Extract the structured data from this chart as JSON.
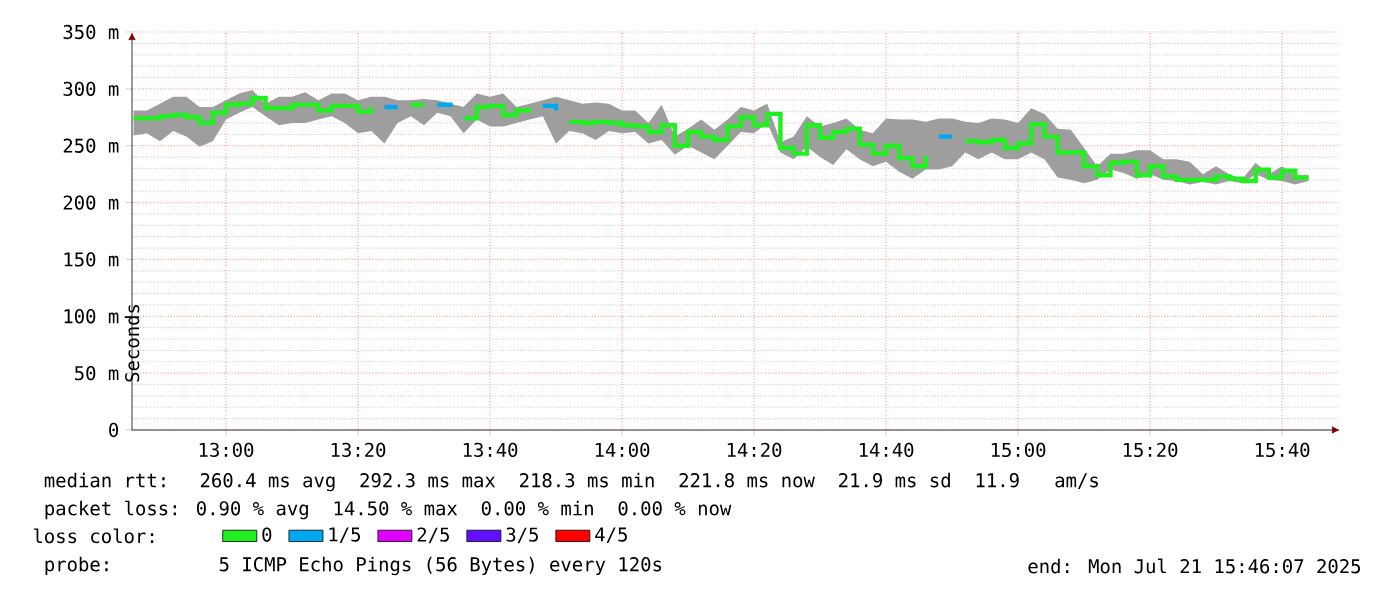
{
  "chart_data": {
    "type": "step",
    "ylabel": "Seconds",
    "legend_title": "loss color:",
    "annotations": [
      "median rtt:  260.4 ms avg  292.3 ms max  218.3 ms min  221.8 ms now  21.9 ms sd  11.9   am/s",
      "packet loss: 0.90 % avg  14.50 % max  0.00 % min  0.00 % now",
      "probe:       5 ICMP Echo Pings (56 Bytes) every 120s",
      "end: Mon Jul 21 15:46:07 2025"
    ],
    "x": [
      12.7667,
      12.8,
      12.8333,
      12.8667,
      12.9,
      12.9333,
      12.9667,
      13,
      13.0333,
      13.0667,
      13.1,
      13.1333,
      13.1667,
      13.2,
      13.2333,
      13.2667,
      13.3,
      13.3333,
      13.3667,
      13.4,
      13.4333,
      13.4667,
      13.5,
      13.5333,
      13.5667,
      13.6,
      13.6333,
      13.6667,
      13.7,
      13.7333,
      13.7667,
      13.8,
      13.8333,
      13.8667,
      13.9,
      13.9333,
      13.9667,
      14,
      14.0333,
      14.0667,
      14.1,
      14.1333,
      14.1667,
      14.2,
      14.2333,
      14.2667,
      14.3,
      14.3333,
      14.3667,
      14.4,
      14.4333,
      14.4667,
      14.5,
      14.5333,
      14.5667,
      14.6,
      14.6333,
      14.6667,
      14.7,
      14.7333,
      14.7667,
      14.8,
      14.8333,
      14.8667,
      14.9,
      14.9333,
      14.9667,
      15,
      15.0333,
      15.0667,
      15.1,
      15.1333,
      15.1667,
      15.2,
      15.2333,
      15.2667,
      15.3,
      15.3333,
      15.3667,
      15.4,
      15.4333,
      15.4667,
      15.5,
      15.5333,
      15.5667,
      15.6,
      15.6333,
      15.6667,
      15.7,
      15.7333
    ],
    "series": [
      {
        "name": "0",
        "color": "#20f020",
        "values": [
          274,
          274,
          276,
          277,
          275,
          270,
          279,
          286,
          287,
          292,
          283,
          283,
          286,
          286,
          281,
          285,
          285,
          280,
          284,
          null,
          null,
          286,
          286,
          null,
          null,
          274,
          284,
          285,
          277,
          281,
          280,
          null,
          null,
          271,
          270,
          271,
          270,
          268,
          267,
          262,
          268,
          250,
          262,
          258,
          255,
          267,
          275,
          268,
          278,
          248,
          243,
          268,
          257,
          262,
          265,
          251,
          243,
          250,
          239,
          232,
          241,
          null,
          null,
          254,
          253,
          255,
          248,
          252,
          269,
          258,
          244,
          244,
          232,
          224,
          235,
          236,
          224,
          232,
          223,
          220,
          220,
          220,
          223,
          221,
          219,
          229,
          222,
          228,
          222,
          222
        ],
        "lower": [
          259,
          261,
          254,
          263,
          258,
          249,
          254,
          273,
          279,
          284,
          276,
          268,
          270,
          270,
          273,
          276,
          270,
          261,
          263,
          252,
          270,
          276,
          268,
          279,
          276,
          261,
          273,
          267,
          267,
          270,
          273,
          276,
          252,
          263,
          261,
          255,
          263,
          261,
          262,
          252,
          255,
          242,
          250,
          244,
          238,
          250,
          262,
          261,
          270,
          244,
          238,
          249,
          240,
          233,
          247,
          238,
          232,
          236,
          227,
          221,
          229,
          229,
          232,
          244,
          238,
          244,
          238,
          238,
          244,
          238,
          222,
          220,
          217,
          220,
          229,
          226,
          221,
          225,
          220,
          219,
          216,
          218,
          216,
          219,
          217,
          225,
          220,
          219,
          216,
          219
        ],
        "upper": [
          281,
          281,
          287,
          293,
          293,
          284,
          284,
          290,
          296,
          299,
          287,
          293,
          293,
          297,
          290,
          296,
          296,
          290,
          293,
          293,
          290,
          290,
          291,
          290,
          287,
          284,
          296,
          293,
          296,
          284,
          287,
          290,
          293,
          290,
          287,
          288,
          287,
          281,
          281,
          270,
          286,
          258,
          265,
          273,
          264,
          273,
          284,
          281,
          287,
          253,
          258,
          276,
          267,
          270,
          274,
          264,
          261,
          274,
          273,
          273,
          271,
          274,
          274,
          271,
          270,
          274,
          273,
          270,
          283,
          278,
          265,
          264,
          248,
          232,
          243,
          243,
          246,
          246,
          238,
          238,
          236,
          225,
          232,
          225,
          221,
          235,
          225,
          232,
          224,
          224
        ]
      },
      {
        "name": "1/5",
        "color": "#00a8f0",
        "values": [
          null,
          null,
          null,
          null,
          null,
          null,
          null,
          null,
          null,
          null,
          null,
          null,
          null,
          null,
          null,
          null,
          null,
          null,
          null,
          284,
          284,
          null,
          null,
          286,
          284,
          null,
          null,
          null,
          null,
          null,
          null,
          285,
          281,
          null,
          null,
          null,
          null,
          null,
          null,
          null,
          null,
          null,
          null,
          null,
          null,
          null,
          null,
          null,
          null,
          null,
          null,
          null,
          null,
          null,
          null,
          null,
          null,
          null,
          null,
          null,
          null,
          258,
          258,
          null,
          null,
          null,
          null,
          null,
          null,
          null,
          null,
          null,
          null,
          null,
          null,
          null,
          null,
          null,
          null,
          null,
          null,
          null,
          null,
          null,
          null,
          null,
          null,
          null,
          null,
          null
        ]
      },
      {
        "name": "2/5",
        "color": "#e000ff",
        "values": [
          null,
          null,
          null,
          null,
          null,
          null,
          null,
          null,
          null,
          null,
          null,
          null,
          null,
          null,
          null,
          null,
          null,
          null,
          null,
          null,
          null,
          null,
          null,
          null,
          null,
          null,
          null,
          null,
          null,
          null,
          null,
          null,
          null,
          null,
          null,
          null,
          null,
          null,
          null,
          null,
          null,
          null,
          null,
          null,
          null,
          null,
          null,
          null,
          null,
          null,
          null,
          null,
          null,
          null,
          null,
          null,
          null,
          null,
          null,
          null,
          null,
          null,
          null,
          null,
          null,
          null,
          null,
          null,
          null,
          null,
          null,
          null,
          null,
          null,
          null,
          null,
          null,
          null,
          null,
          null,
          null,
          null,
          null,
          null,
          null,
          null,
          null,
          null,
          null,
          null
        ]
      },
      {
        "name": "3/5",
        "color": "#6010ff",
        "values": [
          null,
          null,
          null,
          null,
          null,
          null,
          null,
          null,
          null,
          null,
          null,
          null,
          null,
          null,
          null,
          null,
          null,
          null,
          null,
          null,
          null,
          null,
          null,
          null,
          null,
          null,
          null,
          null,
          null,
          null,
          null,
          null,
          null,
          null,
          null,
          null,
          null,
          null,
          null,
          null,
          null,
          null,
          null,
          null,
          null,
          null,
          null,
          null,
          null,
          null,
          null,
          null,
          null,
          null,
          null,
          null,
          null,
          null,
          null,
          null,
          null,
          null,
          null,
          null,
          null,
          null,
          null,
          null,
          null,
          null,
          null,
          null,
          null,
          null,
          null,
          null,
          null,
          null,
          null,
          null,
          null,
          null,
          null,
          null,
          null,
          null,
          null,
          null,
          null,
          null
        ]
      },
      {
        "name": "4/5",
        "color": "#ff0000",
        "values": [
          null,
          null,
          null,
          null,
          null,
          null,
          null,
          null,
          null,
          null,
          null,
          null,
          null,
          null,
          null,
          null,
          null,
          null,
          null,
          null,
          null,
          null,
          null,
          null,
          null,
          null,
          null,
          null,
          null,
          null,
          null,
          null,
          null,
          null,
          null,
          null,
          null,
          null,
          null,
          null,
          null,
          null,
          null,
          null,
          null,
          null,
          null,
          null,
          null,
          null,
          null,
          null,
          null,
          null,
          null,
          null,
          null,
          null,
          null,
          null,
          null,
          null,
          null,
          null,
          null,
          null,
          null,
          null,
          null,
          null,
          null,
          null,
          null,
          null,
          null,
          null,
          null,
          null,
          null,
          null,
          null,
          null,
          null,
          null,
          null,
          null,
          null,
          null,
          null,
          null
        ]
      }
    ],
    "xlim": [
      12.7627,
      15.813
    ],
    "ylim": [
      0,
      350
    ],
    "xticks": [
      {
        "value": 13,
        "label": "13:00"
      },
      {
        "value": 13.3333,
        "label": "13:20"
      },
      {
        "value": 13.6667,
        "label": "13:40"
      },
      {
        "value": 14,
        "label": "14:00"
      },
      {
        "value": 14.3333,
        "label": "14:20"
      },
      {
        "value": 14.6667,
        "label": "14:40"
      },
      {
        "value": 15,
        "label": "15:00"
      },
      {
        "value": 15.3333,
        "label": "15:20"
      },
      {
        "value": 15.6667,
        "label": "15:40"
      }
    ],
    "yticks": [
      0,
      {
        "value": 50,
        "label": "50 m"
      },
      {
        "value": 100,
        "label": "100 m"
      },
      {
        "value": 150,
        "label": "150 m"
      },
      {
        "value": 200,
        "label": "200 m"
      },
      {
        "value": 250,
        "label": "250 m"
      },
      {
        "value": 300,
        "label": "300 m"
      },
      {
        "value": 350,
        "label": "350 m"
      }
    ],
    "grid": true,
    "legend": "bottom",
    "line_style": "solid",
    "marker": "none"
  }
}
